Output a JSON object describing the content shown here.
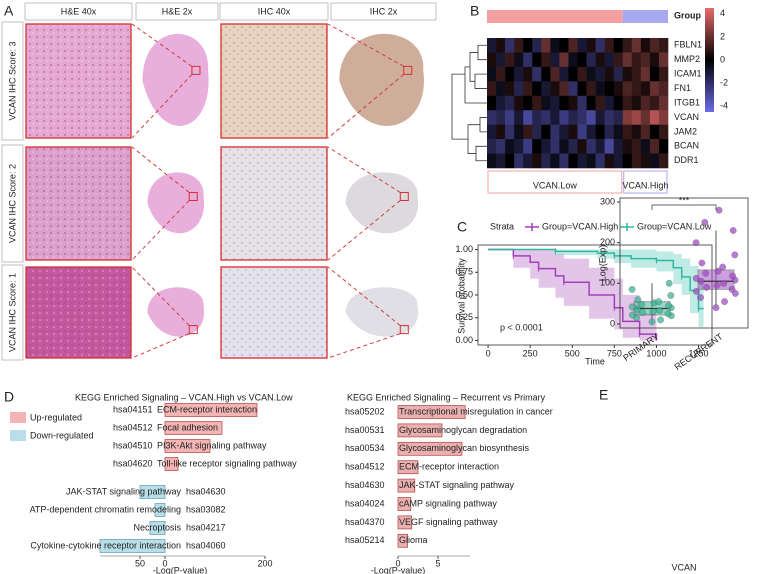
{
  "panel_labels": [
    "A",
    "B",
    "C",
    "D",
    "E"
  ],
  "panel_a": {
    "columns": [
      "H&E 40x",
      "H&E 2x",
      "IHC 40x",
      "IHC 2x"
    ],
    "rows": [
      "VCAN IHC Score: 3",
      "VCAN IHC Score: 2",
      "VCAN IHC Score: 1"
    ]
  },
  "chart_data": [
    {
      "type": "heatmap",
      "group_label": "Group",
      "groups": [
        {
          "name": "VCAN.Low",
          "color": "#f2a0a0",
          "count": 15
        },
        {
          "name": "VCAN.High",
          "color": "#a8a8f0",
          "count": 5
        }
      ],
      "rows": [
        "FBLN1",
        "MMP2",
        "ICAM1",
        "FN1",
        "ITGB1",
        "VCAN",
        "JAM2",
        "BCAN",
        "DDR1"
      ],
      "values": [
        [
          -1,
          0.5,
          -2,
          1,
          0,
          -1.5,
          2,
          -0.5,
          0,
          1.5,
          -1,
          0.5,
          -2,
          1,
          0,
          1,
          2,
          0.5,
          1.5,
          1
        ],
        [
          0.5,
          -1,
          1,
          -0.5,
          -2,
          0,
          1,
          -1,
          2,
          -0.5,
          0,
          -1.5,
          0.5,
          -1,
          1,
          2,
          1,
          1.5,
          0.5,
          2
        ],
        [
          -0.5,
          1,
          0,
          -1,
          0.5,
          -2,
          0,
          1.5,
          -1,
          0,
          1,
          -0.5,
          -1,
          0.5,
          -1.5,
          0.5,
          1,
          2,
          0,
          1
        ],
        [
          1,
          -0.5,
          0.5,
          -1.5,
          1,
          0,
          -1,
          0.5,
          1.5,
          -2,
          0,
          1,
          -0.5,
          0,
          0.5,
          1.5,
          1,
          0.5,
          2,
          1.5
        ],
        [
          0,
          -1,
          -1.5,
          0.5,
          0,
          1,
          -0.5,
          -1,
          0,
          0.5,
          -2,
          0,
          1,
          -1,
          0,
          1,
          0.5,
          1.5,
          1,
          2
        ],
        [
          -2,
          -1.5,
          -2.5,
          -1,
          -3,
          -1.5,
          -2,
          -1,
          -2.5,
          -1.5,
          -2,
          -3,
          -1,
          -2,
          -1.5,
          2.5,
          3,
          2,
          3.5,
          2.5
        ],
        [
          -1,
          0.5,
          -2,
          -0.5,
          1,
          -1.5,
          0,
          -2,
          -1,
          0.5,
          -2.5,
          -1,
          0,
          -1.5,
          -0.5,
          1,
          0.5,
          1.5,
          0,
          1
        ],
        [
          -1.5,
          -2,
          -0.5,
          -1,
          -2.5,
          0,
          -1,
          -2,
          -0.5,
          -1.5,
          0.5,
          -2,
          -1,
          -3,
          -1,
          0.5,
          1,
          -0.5,
          1.5,
          0
        ],
        [
          -0.5,
          -1,
          0,
          -2,
          -1,
          0.5,
          -1.5,
          -0.5,
          -2,
          0,
          -1,
          -0.5,
          -2,
          0.5,
          -1,
          0,
          1,
          0.5,
          -0.5,
          1
        ]
      ],
      "zlim": [
        -4.5,
        4.5
      ],
      "colorbar_ticks": [
        4,
        2,
        0,
        -2,
        -4
      ],
      "colors": {
        "low": "#6b6be8",
        "mid": "#000000",
        "high": "#e86b6b"
      }
    },
    {
      "type": "line",
      "legend_title": "Strata",
      "ylabel": "Survival probability",
      "xlabel": "Time",
      "annotation": "p < 0.0001",
      "xlim": [
        -60,
        1330
      ],
      "ylim": [
        -0.05,
        1.05
      ],
      "xticks": [
        0,
        250,
        500,
        750,
        1000,
        1250
      ],
      "yticks": [
        {
          "value": 0,
          "label": "0.00"
        },
        {
          "value": 0.25,
          "label": "0.25"
        },
        {
          "value": 0.5,
          "label": "0.50"
        },
        {
          "value": 0.75,
          "label": "0.75"
        },
        {
          "value": 1,
          "label": "1.00"
        }
      ],
      "series": [
        {
          "name": "Group=VCAN.High",
          "color": "#a53fb8",
          "x": [
            0,
            150,
            250,
            300,
            400,
            450,
            600,
            750,
            800,
            900,
            1000
          ],
          "values": [
            1,
            0.93,
            0.86,
            0.79,
            0.71,
            0.64,
            0.5,
            0.36,
            0.21,
            0.07,
            0
          ],
          "lower": [
            1,
            0.8,
            0.68,
            0.58,
            0.47,
            0.38,
            0.24,
            0.12,
            0.03,
            0,
            0
          ],
          "upper": [
            1,
            1,
            1,
            1,
            0.95,
            0.9,
            0.8,
            0.68,
            0.5,
            0.3,
            0.1
          ]
        },
        {
          "name": "Group=VCAN.Low",
          "color": "#2fb8a4",
          "x": [
            0,
            400,
            650,
            750,
            850,
            1000,
            1100,
            1150,
            1200,
            1250,
            1280
          ],
          "values": [
            1,
            0.98,
            0.96,
            0.93,
            0.9,
            0.88,
            0.8,
            0.7,
            0.55,
            0.35,
            0.35
          ],
          "lower": [
            1,
            0.94,
            0.9,
            0.85,
            0.8,
            0.76,
            0.62,
            0.5,
            0.3,
            0.15,
            0.15
          ],
          "upper": [
            1,
            1,
            1,
            1,
            1,
            0.98,
            0.95,
            0.9,
            0.82,
            0.65,
            0.65
          ]
        }
      ]
    },
    {
      "type": "bar",
      "orientation": "horizontal",
      "title": "KEGG Enriched Signaling – VCAN.High vs VCAN.Low",
      "xlabel": "-Log(P-value)",
      "codes": [
        "hsa04151",
        "hsa04512",
        "hsa04510",
        "hsa04620",
        "hsa04630",
        "hsa03082",
        "hsa04217",
        "hsa04060"
      ],
      "categories": [
        "ECM-receptor interaction",
        "Focal adhesion",
        "PI3K-Akt signaling pathway",
        "Toll-like receptor signaling pathway",
        "JAK-STAT signaling pathway",
        "ATP-dependent chromatin remodeling",
        "Necroptosis",
        "Cytokine-cytokine receptor interaction"
      ],
      "series": [
        {
          "name": "Up-regulated",
          "color": "#f2b4b4",
          "values": [
            184,
            114,
            90,
            26,
            null,
            null,
            null,
            null
          ]
        },
        {
          "name": "Down-regulated",
          "color": "#b8dfe9",
          "values": [
            null,
            null,
            null,
            null,
            -50,
            -20,
            -30,
            -130
          ]
        }
      ],
      "xticks": [
        {
          "value": -50,
          "label": "50"
        },
        0,
        200
      ]
    },
    {
      "type": "bar",
      "orientation": "horizontal",
      "title": "KEGG Enriched Signaling – Recurrent vs Primary",
      "xlabel": "-Log(P-value)",
      "codes": [
        "hsa05202",
        "hsa00531",
        "hsa00534",
        "hsa04512",
        "hsa04630",
        "hsa04024",
        "hsa04370",
        "hsa05214"
      ],
      "categories": [
        "Transcriptional misregulation in cancer",
        "Glycosaminoglycan degradation",
        "Glycosaminoglycan biosynthesis",
        "ECM-receptor interaction",
        "JAK-STAT signaling pathway",
        "cAMP signaling pathway",
        "VEGF signaling pathway",
        "Glioma"
      ],
      "values": [
        8.4,
        5.5,
        8,
        2.5,
        2.1,
        1.6,
        1.7,
        1.2
      ],
      "color": "#eab0b0",
      "xticks": [
        0,
        5
      ]
    },
    {
      "type": "box",
      "ylabel": "Log(Exp)",
      "xlabel": "VCAN",
      "annotation": "***",
      "categories": [
        "PRIMARY",
        "RECURRENT"
      ],
      "colors": [
        "#3fb597",
        "#a24fc4"
      ],
      "boxes": [
        {
          "min": 0,
          "q1": 22,
          "median": 38,
          "q3": 55,
          "max": 100
        },
        {
          "min": 40,
          "q1": 85,
          "median": 105,
          "q3": 133,
          "max": 230
        }
      ],
      "points": [
        [
          5,
          10,
          15,
          20,
          22,
          25,
          28,
          30,
          33,
          36,
          40,
          42,
          45,
          48,
          52,
          55,
          60,
          70,
          85,
          100
        ],
        [
          40,
          55,
          65,
          75,
          80,
          85,
          90,
          95,
          100,
          105,
          108,
          112,
          118,
          125,
          130,
          140,
          150,
          170,
          200,
          230,
          250,
          280
        ]
      ],
      "ylim": [
        -10,
        310
      ],
      "yticks": [
        0,
        100,
        200,
        300
      ]
    }
  ]
}
